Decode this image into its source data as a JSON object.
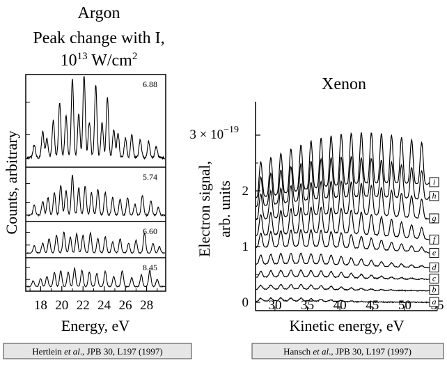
{
  "chart_data": [
    {
      "type": "line",
      "title": "Argon",
      "subtitle_line1": "Peak change with I,",
      "subtitle_base": "10",
      "subtitle_exp": "13",
      "subtitle_unit": " W/cm",
      "subtitle_unit_exp": "2",
      "xlabel": "Energy, eV",
      "ylabel": "Counts, arbitrary",
      "xlim": [
        16.6,
        29.8
      ],
      "xticks": [
        18,
        20,
        22,
        24,
        26,
        28
      ],
      "xtick_labels": [
        "18",
        "20",
        "22",
        "24",
        "26",
        "28"
      ],
      "grid": false,
      "panels": [
        {
          "label": "6.88",
          "peaks": [
            [
              17.4,
              0.14
            ],
            [
              18.2,
              0.3
            ],
            [
              18.6,
              0.22
            ],
            [
              19.2,
              0.42
            ],
            [
              19.8,
              0.62
            ],
            [
              20.4,
              0.48
            ],
            [
              21.0,
              0.9
            ],
            [
              21.6,
              0.5
            ],
            [
              22.1,
              0.95
            ],
            [
              22.6,
              0.4
            ],
            [
              23.2,
              0.82
            ],
            [
              23.8,
              0.4
            ],
            [
              24.3,
              0.68
            ],
            [
              24.9,
              0.32
            ],
            [
              25.3,
              0.28
            ],
            [
              26.0,
              0.22
            ],
            [
              26.6,
              0.26
            ],
            [
              27.4,
              0.2
            ],
            [
              28.2,
              0.18
            ],
            [
              28.9,
              0.12
            ]
          ]
        },
        {
          "label": "5.74",
          "peaks": [
            [
              17.4,
              0.2
            ],
            [
              18.2,
              0.28
            ],
            [
              18.7,
              0.35
            ],
            [
              19.3,
              0.45
            ],
            [
              19.9,
              0.6
            ],
            [
              20.4,
              0.5
            ],
            [
              21.0,
              0.8
            ],
            [
              21.6,
              0.55
            ],
            [
              22.2,
              0.58
            ],
            [
              22.8,
              0.45
            ],
            [
              23.4,
              0.52
            ],
            [
              24.1,
              0.45
            ],
            [
              24.8,
              0.35
            ],
            [
              25.5,
              0.32
            ],
            [
              26.2,
              0.35
            ],
            [
              26.9,
              0.22
            ],
            [
              27.6,
              0.4
            ],
            [
              28.4,
              0.28
            ],
            [
              29.1,
              0.15
            ]
          ]
        },
        {
          "label": "6.60",
          "peaks": [
            [
              17.4,
              0.22
            ],
            [
              18.2,
              0.3
            ],
            [
              18.8,
              0.45
            ],
            [
              19.5,
              0.55
            ],
            [
              20.2,
              0.65
            ],
            [
              20.8,
              0.5
            ],
            [
              21.4,
              0.6
            ],
            [
              22.0,
              0.55
            ],
            [
              22.7,
              0.62
            ],
            [
              23.4,
              0.45
            ],
            [
              24.1,
              0.5
            ],
            [
              24.8,
              0.35
            ],
            [
              25.5,
              0.45
            ],
            [
              26.3,
              0.3
            ],
            [
              27.0,
              0.4
            ],
            [
              27.8,
              0.62
            ],
            [
              28.6,
              0.3
            ],
            [
              29.2,
              0.2
            ]
          ]
        },
        {
          "label": "8.45",
          "peaks": [
            [
              17.3,
              0.2
            ],
            [
              18.0,
              0.28
            ],
            [
              18.6,
              0.35
            ],
            [
              19.3,
              0.48
            ],
            [
              19.9,
              0.55
            ],
            [
              20.6,
              0.5
            ],
            [
              21.2,
              0.62
            ],
            [
              21.9,
              0.55
            ],
            [
              22.6,
              0.5
            ],
            [
              23.3,
              0.45
            ],
            [
              24.1,
              0.52
            ],
            [
              24.9,
              0.35
            ],
            [
              25.7,
              0.55
            ],
            [
              26.6,
              0.3
            ],
            [
              27.5,
              0.4
            ],
            [
              28.3,
              0.55
            ],
            [
              29.0,
              0.25
            ]
          ]
        }
      ]
    },
    {
      "type": "line",
      "title": "Xenon",
      "xlabel": "Kinetic energy, eV",
      "ylabel_line1": "Electron signal,",
      "ylabel_line2": "arb. units",
      "xlim": [
        27,
        55
      ],
      "ylim": [
        -0.15,
        3.6
      ],
      "xticks": [
        30,
        35,
        40,
        45,
        50,
        55
      ],
      "xtick_labels": [
        "30",
        "35",
        "40",
        "45",
        "50",
        "55"
      ],
      "yticks": [
        0,
        1,
        2
      ],
      "ytick_labels": [
        "0",
        "1",
        "2"
      ],
      "ytop_tick": 3,
      "ytop_label_base": "3 × 10",
      "ytop_label_exp": "−19",
      "grid": false,
      "series": [
        {
          "name": "a",
          "offset": 0.0,
          "amp": 0.08,
          "peak_x": 31,
          "decay": 0.2,
          "end_value": 0.0
        },
        {
          "name": "b",
          "offset": 0.2,
          "amp": 0.12,
          "peak_x": 32,
          "decay": 0.15,
          "end_value": 0.22
        },
        {
          "name": "c",
          "offset": 0.4,
          "amp": 0.18,
          "peak_x": 33,
          "decay": 0.13,
          "end_value": 0.42
        },
        {
          "name": "d",
          "offset": 0.6,
          "amp": 0.28,
          "peak_x": 33,
          "decay": 0.11,
          "end_value": 0.62
        },
        {
          "name": "e",
          "offset": 0.85,
          "amp": 0.45,
          "peak_x": 34,
          "decay": 0.09,
          "end_value": 0.88
        },
        {
          "name": "f",
          "offset": 1.0,
          "amp": 0.7,
          "peak_x": 36,
          "decay": 0.06,
          "end_value": 1.12
        },
        {
          "name": "g",
          "offset": 1.25,
          "amp": 0.9,
          "peak_x": 38,
          "decay": 0.045,
          "end_value": 1.5
        },
        {
          "name": "h",
          "offset": 1.45,
          "amp": 1.1,
          "peak_x": 40,
          "decay": 0.04,
          "end_value": 1.9
        },
        {
          "name": "i",
          "offset": 1.55,
          "amp": 1.4,
          "peak_x": 42,
          "decay": 0.035,
          "end_value": 2.15
        }
      ]
    }
  ],
  "citations": {
    "left": {
      "prefix": "Hertlein ",
      "etal": "et al",
      "suffix": "., JPB 30, L197 (1997)"
    },
    "right": {
      "prefix": "Hansch ",
      "etal": "et al",
      "suffix": "., JPB 30, L197 (1997)"
    }
  }
}
